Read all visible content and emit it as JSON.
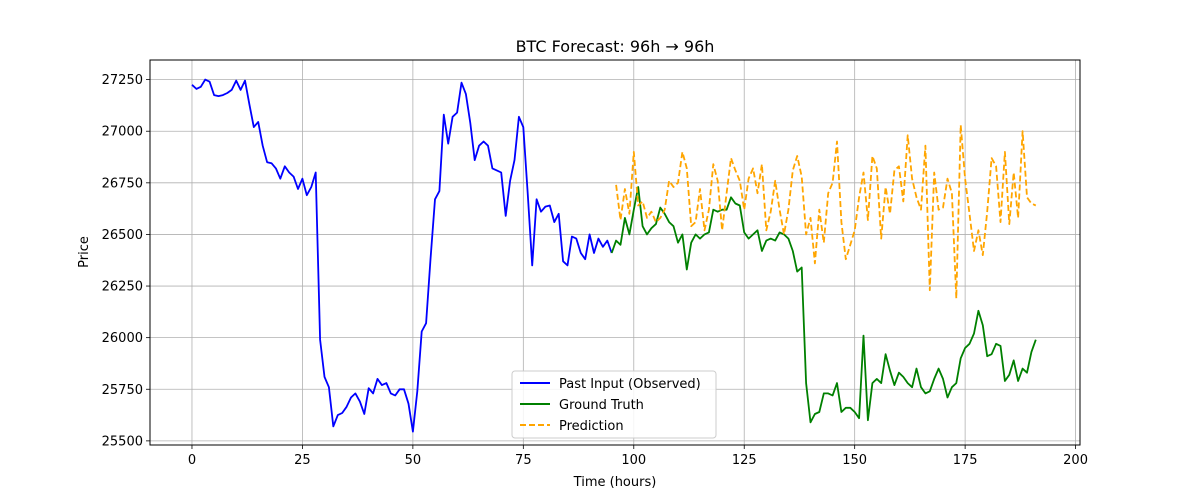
{
  "chart_data": {
    "type": "line",
    "title": "BTC Forecast: 96h → 96h",
    "xlabel": "Time (hours)",
    "ylabel": "Price",
    "xlim": [
      -9.5,
      201
    ],
    "ylim": [
      25480,
      27345
    ],
    "xticks": [
      0,
      25,
      50,
      75,
      100,
      125,
      150,
      175,
      200
    ],
    "yticks": [
      25500,
      25750,
      26000,
      26250,
      26500,
      26750,
      27000,
      27250
    ],
    "grid": true,
    "legend_position": "bottom-center",
    "series": [
      {
        "name": "Past Input (Observed)",
        "color": "#0000ff",
        "style": "solid",
        "x": [
          0,
          1,
          2,
          3,
          4,
          5,
          6,
          7,
          8,
          9,
          10,
          11,
          12,
          13,
          14,
          15,
          16,
          17,
          18,
          19,
          20,
          21,
          22,
          23,
          24,
          25,
          26,
          27,
          28,
          29,
          30,
          31,
          32,
          33,
          34,
          35,
          36,
          37,
          38,
          39,
          40,
          41,
          42,
          43,
          44,
          45,
          46,
          47,
          48,
          49,
          50,
          51,
          52,
          53,
          54,
          55,
          56,
          57,
          58,
          59,
          60,
          61,
          62,
          63,
          64,
          65,
          66,
          67,
          68,
          69,
          70,
          71,
          72,
          73,
          74,
          75,
          76,
          77,
          78,
          79,
          80,
          81,
          82,
          83,
          84,
          85,
          86,
          87,
          88,
          89,
          90,
          91,
          92,
          93,
          94,
          95
        ],
        "y": [
          27225,
          27205,
          27215,
          27250,
          27240,
          27175,
          27170,
          27175,
          27185,
          27200,
          27245,
          27200,
          27245,
          27130,
          27020,
          27045,
          26930,
          26850,
          26845,
          26820,
          26770,
          26830,
          26800,
          26780,
          26720,
          26770,
          26690,
          26730,
          26800,
          25990,
          25810,
          25760,
          25570,
          25625,
          25635,
          25665,
          25710,
          25730,
          25690,
          25630,
          25755,
          25730,
          25800,
          25770,
          25780,
          25730,
          25720,
          25750,
          25750,
          25680,
          25545,
          25740,
          26030,
          26070,
          26380,
          26670,
          26710,
          27080,
          26940,
          27070,
          27090,
          27235,
          27180,
          27040,
          26860,
          26930,
          26950,
          26930,
          26820,
          26810,
          26800,
          26590,
          26760,
          26860,
          27070,
          27020,
          26700,
          26350,
          26670,
          26610,
          26635,
          26640,
          26560,
          26600,
          26370,
          26350,
          26490,
          26480,
          26410,
          26380,
          26500,
          26410,
          26480,
          26440,
          26470,
          26410
        ]
      },
      {
        "name": "Ground Truth",
        "color": "#008000",
        "style": "solid",
        "x": [
          95,
          96,
          97,
          98,
          99,
          100,
          101,
          102,
          103,
          104,
          105,
          106,
          107,
          108,
          109,
          110,
          111,
          112,
          113,
          114,
          115,
          116,
          117,
          118,
          119,
          120,
          121,
          122,
          123,
          124,
          125,
          126,
          127,
          128,
          129,
          130,
          131,
          132,
          133,
          134,
          135,
          136,
          137,
          138,
          139,
          140,
          141,
          142,
          143,
          144,
          145,
          146,
          147,
          148,
          149,
          150,
          151,
          152,
          153,
          154,
          155,
          156,
          157,
          158,
          159,
          160,
          161,
          162,
          163,
          164,
          165,
          166,
          167,
          168,
          169,
          170,
          171,
          172,
          173,
          174,
          175,
          176,
          177,
          178,
          179,
          180,
          181,
          182,
          183,
          184,
          185,
          186,
          187,
          188,
          189,
          190,
          191
        ],
        "y": [
          26410,
          26470,
          26450,
          26580,
          26500,
          26620,
          26730,
          26540,
          26500,
          26530,
          26550,
          26630,
          26600,
          26560,
          26540,
          26460,
          26500,
          26330,
          26460,
          26500,
          26480,
          26500,
          26510,
          26620,
          26610,
          26620,
          26620,
          26680,
          26650,
          26640,
          26510,
          26480,
          26500,
          26520,
          26420,
          26470,
          26480,
          26470,
          26510,
          26500,
          26480,
          26420,
          26320,
          26340,
          25780,
          25590,
          25630,
          25640,
          25730,
          25730,
          25720,
          25780,
          25640,
          25660,
          25660,
          25640,
          25610,
          26010,
          25600,
          25780,
          25800,
          25780,
          25920,
          25840,
          25770,
          25830,
          25810,
          25780,
          25760,
          25850,
          25760,
          25730,
          25740,
          25800,
          25850,
          25800,
          25710,
          25760,
          25780,
          25900,
          25950,
          25970,
          26020,
          26130,
          26060,
          25910,
          25920,
          25970,
          25960,
          25790,
          25820,
          25890,
          25790,
          25850,
          25830,
          25930,
          25990
        ]
      },
      {
        "name": "Prediction",
        "color": "#ffa500",
        "style": "dashed",
        "x": [
          96,
          97,
          98,
          99,
          100,
          101,
          102,
          103,
          104,
          105,
          106,
          107,
          108,
          109,
          110,
          111,
          112,
          113,
          114,
          115,
          116,
          117,
          118,
          119,
          120,
          121,
          122,
          123,
          124,
          125,
          126,
          127,
          128,
          129,
          130,
          131,
          132,
          133,
          134,
          135,
          136,
          137,
          138,
          139,
          140,
          141,
          142,
          143,
          144,
          145,
          146,
          147,
          148,
          149,
          150,
          151,
          152,
          153,
          154,
          155,
          156,
          157,
          158,
          159,
          160,
          161,
          162,
          163,
          164,
          165,
          166,
          167,
          168,
          169,
          170,
          171,
          172,
          173,
          174,
          175,
          176,
          177,
          178,
          179,
          180,
          181,
          182,
          183,
          184,
          185,
          186,
          187,
          188,
          189,
          190,
          191
        ],
        "y": [
          26740,
          26570,
          26720,
          26600,
          26900,
          26640,
          26660,
          26580,
          26610,
          26560,
          26580,
          26620,
          26760,
          26730,
          26750,
          26900,
          26820,
          26540,
          26560,
          26720,
          26520,
          26620,
          26840,
          26760,
          26520,
          26700,
          26870,
          26810,
          26760,
          26620,
          26770,
          26820,
          26700,
          26840,
          26520,
          26610,
          26760,
          26620,
          26500,
          26620,
          26810,
          26880,
          26780,
          26500,
          26580,
          26360,
          26620,
          26460,
          26700,
          26750,
          26950,
          26560,
          26380,
          26450,
          26520,
          26680,
          26800,
          26570,
          26880,
          26820,
          26480,
          26730,
          26600,
          26810,
          26830,
          26660,
          26980,
          26770,
          26680,
          26620,
          26930,
          26230,
          26800,
          26620,
          26630,
          26770,
          26700,
          26190,
          27030,
          26770,
          26600,
          26420,
          26520,
          26400,
          26610,
          26870,
          26830,
          26560,
          26900,
          26550,
          26800,
          26580,
          27000,
          26680,
          26650,
          26640
        ]
      }
    ]
  }
}
